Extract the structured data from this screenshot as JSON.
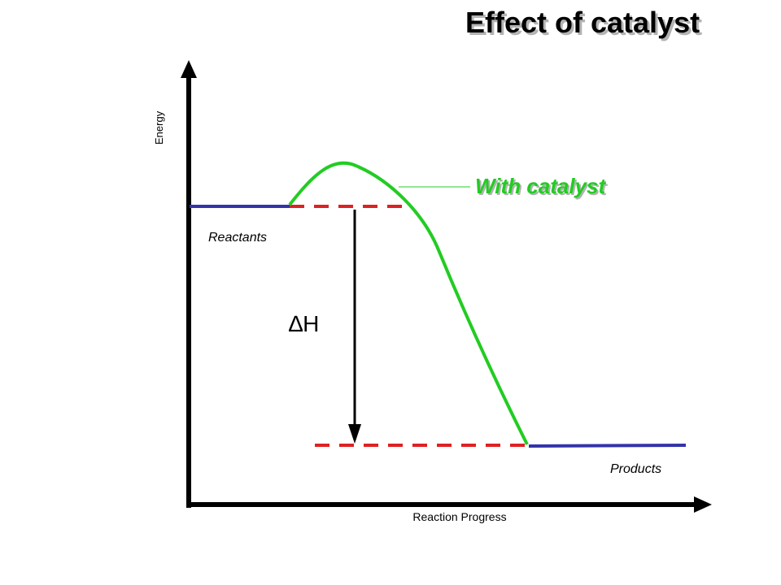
{
  "title": "Effect of catalyst",
  "axes": {
    "y_label": "Energy",
    "x_label": "Reaction Progress"
  },
  "labels": {
    "reactants": "Reactants",
    "products": "Products",
    "delta_h": "∆H",
    "catalyst_callout": "With catalyst"
  },
  "colors": {
    "catalyst_curve": "#22cc22",
    "energy_level": "#3333aa",
    "dashed_reference": "#dd2222",
    "axis": "#000000",
    "callout_text": "#22cc22",
    "shadow": "#b3b3b3"
  }
}
